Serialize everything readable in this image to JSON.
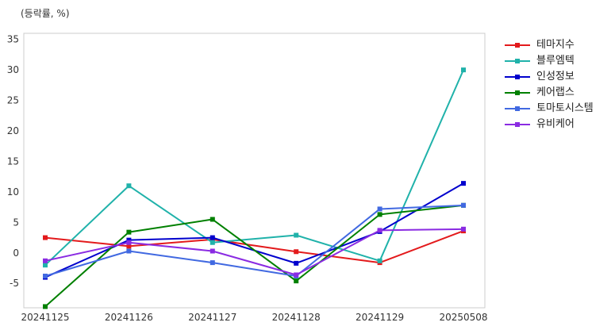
{
  "chart_data": {
    "type": "line",
    "unit_label": "(등락률, %)",
    "categories": [
      "20241125",
      "20241126",
      "20241127",
      "20241128",
      "20241129",
      "20250508"
    ],
    "ylim": [
      -9,
      36
    ],
    "yticks": [
      -5,
      0,
      5,
      10,
      15,
      20,
      25,
      30,
      35
    ],
    "grid": true,
    "legend_position": "outside-right-top",
    "series": [
      {
        "name": "테마지수",
        "color": "#e31a1c",
        "values": [
          2.5,
          1.1,
          2.2,
          0.2,
          -1.6,
          3.6
        ]
      },
      {
        "name": "블루엠텍",
        "color": "#20b2aa",
        "values": [
          -2.0,
          11.0,
          1.7,
          2.9,
          -1.3,
          30.0
        ]
      },
      {
        "name": "인성정보",
        "color": "#0000cd",
        "values": [
          -4.0,
          2.1,
          2.5,
          -1.7,
          3.5,
          11.4
        ]
      },
      {
        "name": "케어랩스",
        "color": "#008000",
        "values": [
          -8.8,
          3.4,
          5.5,
          -4.6,
          6.3,
          7.8
        ]
      },
      {
        "name": "토마토시스템",
        "color": "#4169e1",
        "values": [
          -3.8,
          0.3,
          -1.6,
          -3.8,
          7.2,
          7.8
        ]
      },
      {
        "name": "유비케어",
        "color": "#8a2be2",
        "values": [
          -1.3,
          1.7,
          0.3,
          -3.6,
          3.7,
          3.9
        ]
      }
    ]
  }
}
